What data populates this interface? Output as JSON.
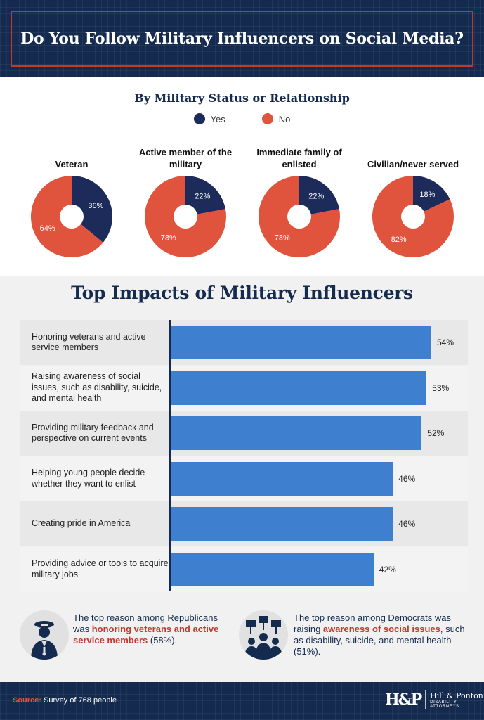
{
  "header": {
    "title": "Do You Follow Military Influencers on Social Media?"
  },
  "section1": {
    "subtitle": "By Military Status or Relationship",
    "legend": {
      "yes": "Yes",
      "no": "No"
    }
  },
  "colors": {
    "yes": "#1c2b5a",
    "no": "#e0533d",
    "bar": "#3f7fd0",
    "navy": "#142a4e"
  },
  "impacts_title": "Top Impacts of Military Influencers",
  "chart_data": [
    {
      "type": "pie",
      "title": "By Military Status or Relationship",
      "legend": [
        "Yes",
        "No"
      ],
      "charts": [
        {
          "label": "Veteran",
          "yes": 36,
          "no": 64,
          "yes_label": "36%",
          "no_label": "64%"
        },
        {
          "label": "Active member of the military",
          "yes": 22,
          "no": 78,
          "yes_label": "22%",
          "no_label": "78%"
        },
        {
          "label": "Immediate family of enlisted",
          "yes": 22,
          "no": 78,
          "yes_label": "22%",
          "no_label": "78%"
        },
        {
          "label": "Civilian/never served",
          "yes": 18,
          "no": 82,
          "yes_label": "18%",
          "no_label": "82%"
        }
      ]
    },
    {
      "type": "bar",
      "orientation": "horizontal",
      "title": "Top Impacts of Military Influencers",
      "categories": [
        "Honoring veterans and active service members",
        "Raising awareness of social issues, such as disability, suicide, and mental health",
        "Providing military feedback and perspective on current events",
        "Helping young people decide whether they want to enlist",
        "Creating pride in America",
        "Providing advice or tools to acquire military jobs"
      ],
      "values": [
        54,
        53,
        52,
        46,
        46,
        42
      ],
      "value_labels": [
        "54%",
        "53%",
        "52%",
        "46%",
        "46%",
        "42%"
      ]
    }
  ],
  "notes": {
    "republicans": {
      "pre": "The top reason among Republicans was ",
      "highlight": "honoring veterans and active service members",
      "post": " (58%)."
    },
    "democrats": {
      "pre": "The top reason among Democrats was raising ",
      "highlight": "awareness of social issues",
      "post": ", such as disability, suicide, and mental health (51%)."
    }
  },
  "footer": {
    "source_label": "Source:",
    "source_text": " Survey of 768 people",
    "logo_mark": "H&P",
    "logo_name": "Hill & Ponton",
    "logo_sub": "Disability Attorneys"
  }
}
